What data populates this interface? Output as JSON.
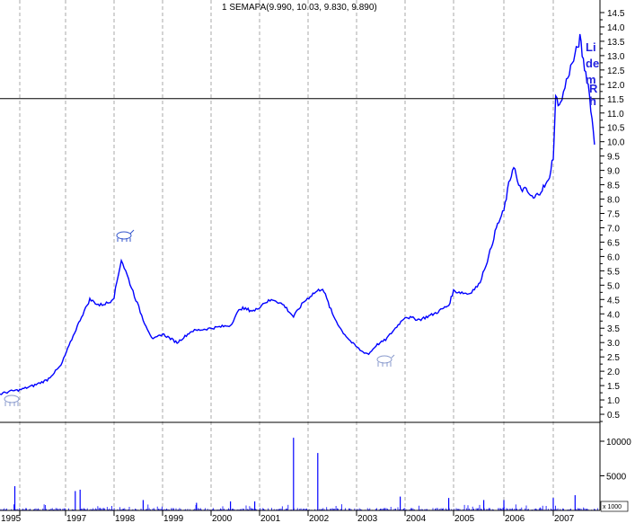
{
  "chart_data": {
    "type": "line",
    "title": "1 SEMAPA(9.990, 10.03, 9.830, 9.890)",
    "line_color": "#0000ff",
    "reference_line": 11.5,
    "annotation_fragments": [
      "Li",
      "de",
      "m",
      "R",
      "h"
    ],
    "x_tick_labels": [
      "1995",
      "1997",
      "1998",
      "1999",
      "2000",
      "2001",
      "2002",
      "2003",
      "2004",
      "2005",
      "2006",
      "2007"
    ],
    "price_axis": {
      "ylim": [
        0,
        14.5
      ],
      "ticks": [
        "0.5",
        "1.0",
        "1.5",
        "2.0",
        "2.5",
        "3.0",
        "3.5",
        "4.0",
        "4.5",
        "5.0",
        "5.5",
        "6.0",
        "6.5",
        "7.0",
        "7.5",
        "8.0",
        "8.5",
        "9.0",
        "9.5",
        "10.0",
        "10.5",
        "11.0",
        "11.5",
        "12.0",
        "12.5",
        "13.0",
        "13.5",
        "14.0",
        "14.5"
      ]
    },
    "price_series": [
      [
        1995.6,
        1.2
      ],
      [
        1995.8,
        1.3
      ],
      [
        1996.0,
        1.35
      ],
      [
        1996.3,
        1.5
      ],
      [
        1996.6,
        1.7
      ],
      [
        1996.9,
        2.2
      ],
      [
        1997.1,
        3.0
      ],
      [
        1997.3,
        3.8
      ],
      [
        1997.5,
        4.5
      ],
      [
        1997.7,
        4.3
      ],
      [
        1997.9,
        4.4
      ],
      [
        1998.0,
        4.6
      ],
      [
        1998.15,
        5.9
      ],
      [
        1998.3,
        5.2
      ],
      [
        1998.45,
        4.5
      ],
      [
        1998.6,
        3.8
      ],
      [
        1998.8,
        3.1
      ],
      [
        1999.0,
        3.3
      ],
      [
        1999.3,
        3.0
      ],
      [
        1999.6,
        3.4
      ],
      [
        2000.0,
        3.5
      ],
      [
        2000.4,
        3.6
      ],
      [
        2000.6,
        4.2
      ],
      [
        2000.9,
        4.1
      ],
      [
        2001.1,
        4.4
      ],
      [
        2001.3,
        4.5
      ],
      [
        2001.5,
        4.3
      ],
      [
        2001.7,
        3.9
      ],
      [
        2001.9,
        4.4
      ],
      [
        2002.1,
        4.7
      ],
      [
        2002.3,
        4.9
      ],
      [
        2002.5,
        4.0
      ],
      [
        2002.7,
        3.4
      ],
      [
        2002.9,
        3.0
      ],
      [
        2003.1,
        2.7
      ],
      [
        2003.25,
        2.6
      ],
      [
        2003.4,
        2.9
      ],
      [
        2003.6,
        3.1
      ],
      [
        2003.8,
        3.5
      ],
      [
        2004.0,
        3.9
      ],
      [
        2004.3,
        3.8
      ],
      [
        2004.6,
        4.0
      ],
      [
        2004.9,
        4.3
      ],
      [
        2005.0,
        4.8
      ],
      [
        2005.3,
        4.7
      ],
      [
        2005.5,
        5.0
      ],
      [
        2005.7,
        6.0
      ],
      [
        2005.85,
        7.0
      ],
      [
        2006.0,
        7.6
      ],
      [
        2006.1,
        8.5
      ],
      [
        2006.2,
        9.2
      ],
      [
        2006.3,
        8.4
      ],
      [
        2006.45,
        8.3
      ],
      [
        2006.6,
        8.0
      ],
      [
        2006.75,
        8.3
      ],
      [
        2006.9,
        8.6
      ],
      [
        2007.0,
        9.5
      ],
      [
        2007.05,
        11.5
      ],
      [
        2007.15,
        11.3
      ],
      [
        2007.3,
        12.3
      ],
      [
        2007.45,
        13.0
      ],
      [
        2007.55,
        13.6
      ],
      [
        2007.62,
        12.8
      ],
      [
        2007.72,
        12.0
      ],
      [
        2007.8,
        10.8
      ],
      [
        2007.85,
        9.9
      ]
    ],
    "volume_axis": {
      "ylim": [
        0,
        12000
      ],
      "ticks": [
        "5000",
        "10000"
      ],
      "unit_label": "x 1000"
    },
    "volume_spikes": [
      [
        1995.9,
        3500
      ],
      [
        1997.2,
        2800
      ],
      [
        1997.3,
        3000
      ],
      [
        1998.6,
        1500
      ],
      [
        1999.7,
        1100
      ],
      [
        2000.4,
        1300
      ],
      [
        2000.9,
        1300
      ],
      [
        2001.7,
        10500
      ],
      [
        2002.2,
        8300
      ],
      [
        2003.9,
        2000
      ],
      [
        2004.9,
        1800
      ],
      [
        2005.6,
        1500
      ],
      [
        2006.0,
        1500
      ],
      [
        2007.0,
        1800
      ],
      [
        2007.45,
        2200
      ]
    ]
  }
}
